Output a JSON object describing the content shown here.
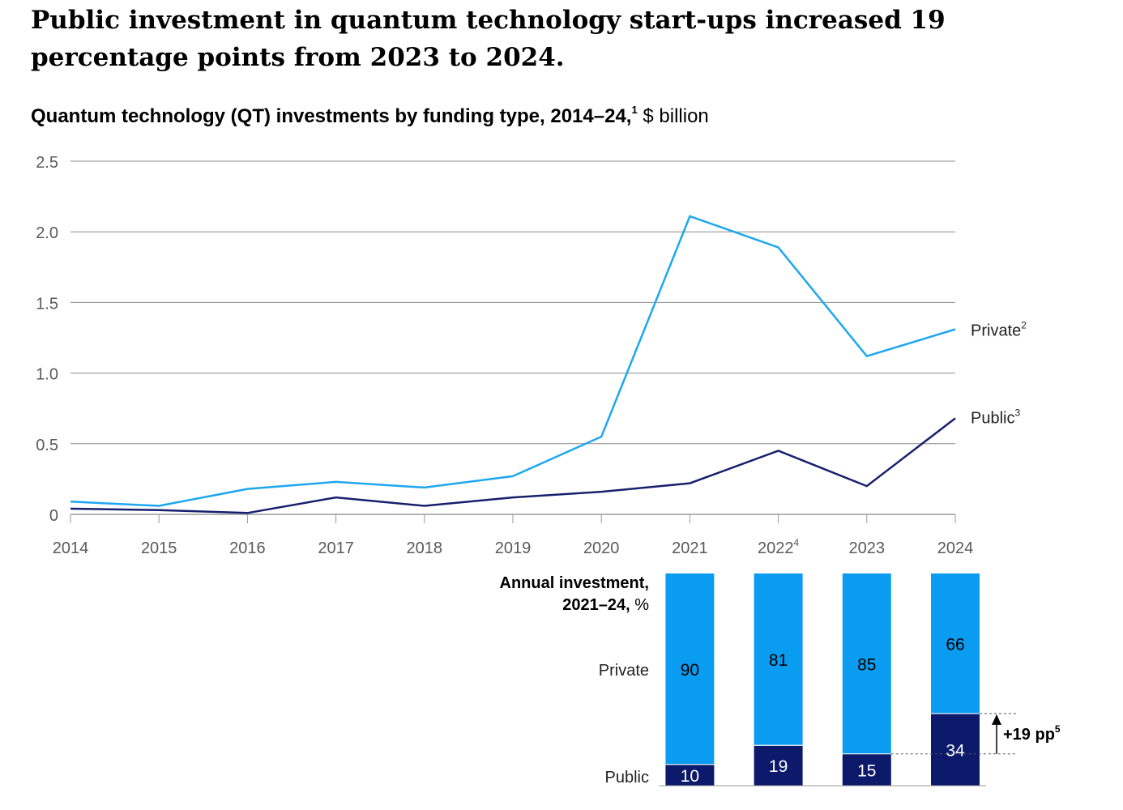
{
  "headline": "Public investment in quantum technology start-ups increased 19 percentage points from 2023 to 2024.",
  "subtitle": {
    "bold": "Quantum technology (QT) investments by funding type, 2014–24,",
    "footnote": "1",
    "unit": " $ billion"
  },
  "colors": {
    "private": "#1ea7ef",
    "public": "#17206e",
    "private_bar": "#0a9cf0",
    "public_bar": "#0d1a6b",
    "grid": "#8c8c8c",
    "axis_text": "#5a5a5a"
  },
  "chart_data": [
    {
      "type": "line",
      "x": [
        "2014",
        "2015",
        "2016",
        "2017",
        "2018",
        "2019",
        "2020",
        "2021",
        "2022",
        "2023",
        "2024"
      ],
      "x_tick_labels": [
        {
          "label": "2014"
        },
        {
          "label": "2015"
        },
        {
          "label": "2016"
        },
        {
          "label": "2017"
        },
        {
          "label": "2018"
        },
        {
          "label": "2019"
        },
        {
          "label": "2020"
        },
        {
          "label": "2021"
        },
        {
          "label": "2022",
          "sup": "4"
        },
        {
          "label": "2023"
        },
        {
          "label": "2024"
        }
      ],
      "y_ticks": [
        0,
        0.5,
        1.0,
        1.5,
        2.0,
        2.5
      ],
      "y_tick_labels": [
        "0",
        "0.5",
        "1.0",
        "1.5",
        "2.0",
        "2.5"
      ],
      "ylim": [
        0,
        2.5
      ],
      "grid": true,
      "series": [
        {
          "name": "Private",
          "footnote": "2",
          "color": "#1ea7ef",
          "values": [
            0.09,
            0.06,
            0.18,
            0.23,
            0.19,
            0.27,
            0.55,
            2.11,
            1.89,
            1.12,
            1.31
          ]
        },
        {
          "name": "Public",
          "footnote": "3",
          "color": "#17206e",
          "values": [
            0.04,
            0.03,
            0.01,
            0.12,
            0.06,
            0.12,
            0.16,
            0.22,
            0.45,
            0.2,
            0.68
          ]
        }
      ]
    },
    {
      "type": "bar",
      "stacked": true,
      "title_bold": "Annual investment,",
      "title_bold2": "2021–24,",
      "title_unit": " %",
      "row_labels": {
        "private": "Private",
        "public": "Public"
      },
      "categories": [
        "2021",
        "2022",
        "2023",
        "2024"
      ],
      "series": [
        {
          "name": "Public",
          "values": [
            10,
            19,
            15,
            34
          ]
        },
        {
          "name": "Private",
          "values": [
            90,
            81,
            85,
            66
          ]
        }
      ],
      "annotation": {
        "text": "+19 pp",
        "footnote": "5"
      }
    }
  ]
}
